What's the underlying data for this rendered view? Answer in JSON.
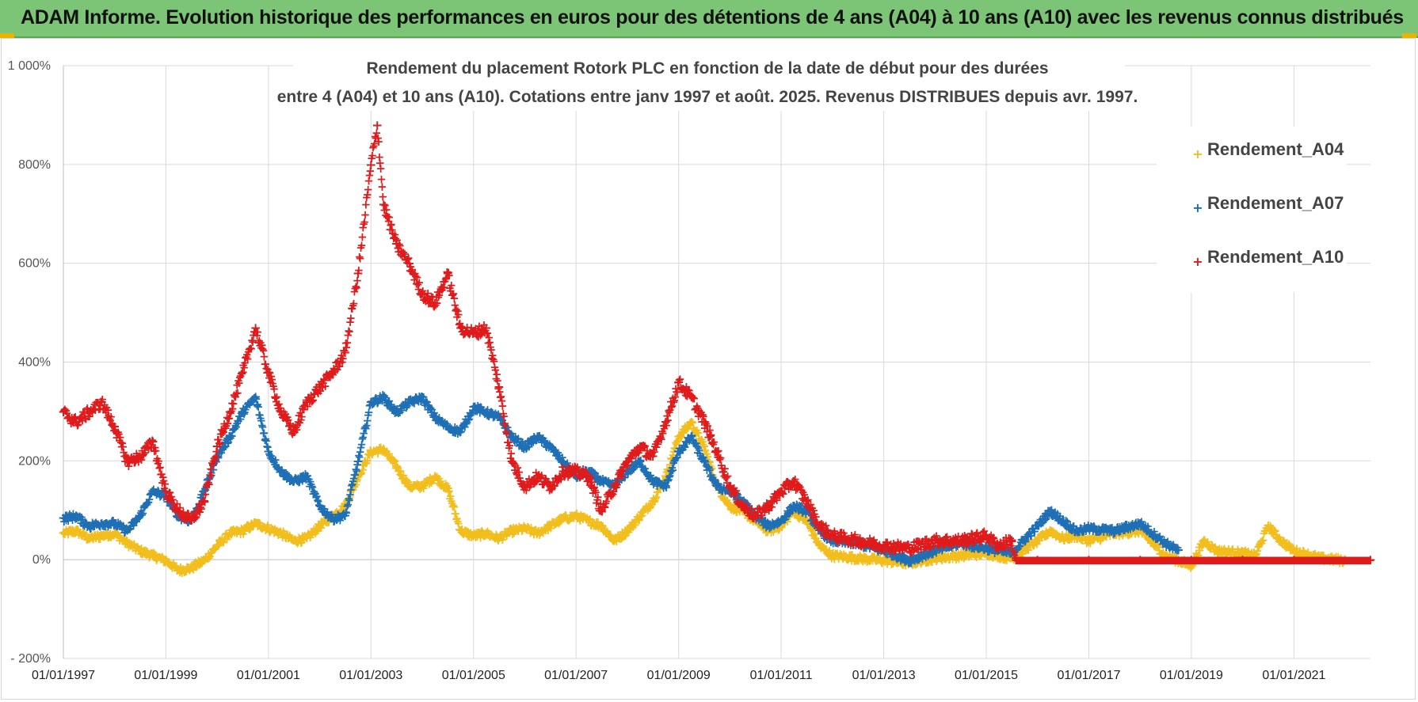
{
  "banner": {
    "title": "ADAM Informe. Evolution historique des performances en euros pour des détentions de 4 ans (A04) à 10 ans (A10) avec les revenus connus distribués"
  },
  "chart_data": {
    "type": "scatter",
    "title_line1": "Rendement du placement Rotork PLC en fonction de la date de début pour des durées",
    "title_line2": "entre 4 (A04) et 10 ans (A10).  Cotations entre janv 1997 et août. 2025. Revenus DISTRIBUES depuis avr. 1997.",
    "xlabel": "",
    "ylabel": "",
    "xlim": [
      "1997-01-01",
      "2022-06-30"
    ],
    "ylim": [
      -200,
      1000
    ],
    "y_ticks": [
      -200,
      0,
      200,
      400,
      600,
      800,
      1000
    ],
    "y_tick_labels": [
      "- 200%",
      "0%",
      "200%",
      "400%",
      "600%",
      "800%",
      "1 000%"
    ],
    "x_ticks": [
      "1997-01-01",
      "1999-01-01",
      "2001-01-01",
      "2003-01-01",
      "2005-01-01",
      "2007-01-01",
      "2009-01-01",
      "2011-01-01",
      "2013-01-01",
      "2015-01-01",
      "2017-01-01",
      "2019-01-01",
      "2021-01-01"
    ],
    "x_tick_labels": [
      "01/01/1997",
      "01/01/1999",
      "01/01/2001",
      "01/01/2003",
      "01/01/2005",
      "01/01/2007",
      "01/01/2009",
      "01/01/2011",
      "01/01/2013",
      "01/01/2015",
      "01/01/2017",
      "01/01/2019",
      "01/01/2021"
    ],
    "grid": true,
    "legend_position": "top-right",
    "series": [
      {
        "name": "Rendement_A04",
        "color": "#f2be1d",
        "points": [
          [
            "1997-01-01",
            55
          ],
          [
            "1997-04-01",
            60
          ],
          [
            "1997-07-01",
            45
          ],
          [
            "1997-10-01",
            50
          ],
          [
            "1998-01-01",
            55
          ],
          [
            "1998-04-01",
            35
          ],
          [
            "1998-07-01",
            20
          ],
          [
            "1998-10-01",
            10
          ],
          [
            "1999-01-01",
            0
          ],
          [
            "1999-04-01",
            -20
          ],
          [
            "1999-07-01",
            -15
          ],
          [
            "1999-10-01",
            0
          ],
          [
            "2000-01-01",
            30
          ],
          [
            "2000-04-01",
            55
          ],
          [
            "2000-07-01",
            60
          ],
          [
            "2000-10-01",
            75
          ],
          [
            "2001-01-01",
            65
          ],
          [
            "2001-04-01",
            55
          ],
          [
            "2001-07-01",
            40
          ],
          [
            "2001-10-01",
            45
          ],
          [
            "2002-01-01",
            70
          ],
          [
            "2002-04-01",
            90
          ],
          [
            "2002-07-01",
            110
          ],
          [
            "2002-10-01",
            170
          ],
          [
            "2003-01-01",
            220
          ],
          [
            "2003-04-01",
            225
          ],
          [
            "2003-07-01",
            190
          ],
          [
            "2003-10-01",
            150
          ],
          [
            "2004-01-01",
            150
          ],
          [
            "2004-04-01",
            170
          ],
          [
            "2004-07-01",
            145
          ],
          [
            "2004-10-01",
            60
          ],
          [
            "2005-01-01",
            50
          ],
          [
            "2005-04-01",
            55
          ],
          [
            "2005-07-01",
            45
          ],
          [
            "2005-10-01",
            60
          ],
          [
            "2006-01-01",
            65
          ],
          [
            "2006-04-01",
            55
          ],
          [
            "2006-07-01",
            70
          ],
          [
            "2006-10-01",
            85
          ],
          [
            "2007-01-01",
            90
          ],
          [
            "2007-04-01",
            80
          ],
          [
            "2007-07-01",
            70
          ],
          [
            "2007-10-01",
            40
          ],
          [
            "2008-01-01",
            60
          ],
          [
            "2008-04-01",
            90
          ],
          [
            "2008-07-01",
            120
          ],
          [
            "2008-10-01",
            170
          ],
          [
            "2009-01-01",
            250
          ],
          [
            "2009-04-01",
            280
          ],
          [
            "2009-07-01",
            230
          ],
          [
            "2009-10-01",
            150
          ],
          [
            "2010-01-01",
            110
          ],
          [
            "2010-04-01",
            100
          ],
          [
            "2010-07-01",
            80
          ],
          [
            "2010-10-01",
            60
          ],
          [
            "2011-01-01",
            70
          ],
          [
            "2011-04-01",
            100
          ],
          [
            "2011-07-01",
            80
          ],
          [
            "2011-10-01",
            30
          ],
          [
            "2012-01-01",
            10
          ],
          [
            "2012-07-01",
            5
          ],
          [
            "2013-01-01",
            0
          ],
          [
            "2013-07-01",
            -5
          ],
          [
            "2014-01-01",
            5
          ],
          [
            "2014-07-01",
            10
          ],
          [
            "2015-01-01",
            15
          ],
          [
            "2015-07-01",
            5
          ],
          [
            "2016-01-01",
            40
          ],
          [
            "2016-04-01",
            60
          ],
          [
            "2016-07-01",
            45
          ],
          [
            "2016-10-01",
            50
          ],
          [
            "2017-01-01",
            40
          ],
          [
            "2017-07-01",
            55
          ],
          [
            "2018-01-01",
            60
          ],
          [
            "2018-07-01",
            10
          ],
          [
            "2019-01-01",
            -10
          ],
          [
            "2019-04-01",
            40
          ],
          [
            "2019-07-01",
            20
          ],
          [
            "2020-01-01",
            15
          ],
          [
            "2020-04-01",
            10
          ],
          [
            "2020-07-01",
            70
          ],
          [
            "2020-10-01",
            40
          ],
          [
            "2021-01-01",
            20
          ],
          [
            "2021-07-01",
            5
          ],
          [
            "2022-01-01",
            0
          ],
          [
            "2022-06-30",
            0
          ]
        ]
      },
      {
        "name": "Rendement_A07",
        "color": "#1f6fb5",
        "points": [
          [
            "1997-01-01",
            85
          ],
          [
            "1997-04-01",
            90
          ],
          [
            "1997-07-01",
            70
          ],
          [
            "1997-10-01",
            75
          ],
          [
            "1998-01-01",
            75
          ],
          [
            "1998-04-01",
            60
          ],
          [
            "1998-07-01",
            90
          ],
          [
            "1998-10-01",
            140
          ],
          [
            "1999-01-01",
            130
          ],
          [
            "1999-04-01",
            90
          ],
          [
            "1999-07-01",
            80
          ],
          [
            "1999-10-01",
            140
          ],
          [
            "2000-01-01",
            210
          ],
          [
            "2000-04-01",
            250
          ],
          [
            "2000-07-01",
            300
          ],
          [
            "2000-10-01",
            330
          ],
          [
            "2001-01-01",
            220
          ],
          [
            "2001-04-01",
            180
          ],
          [
            "2001-07-01",
            160
          ],
          [
            "2001-10-01",
            170
          ],
          [
            "2002-01-01",
            110
          ],
          [
            "2002-04-01",
            85
          ],
          [
            "2002-07-01",
            90
          ],
          [
            "2002-10-01",
            200
          ],
          [
            "2003-01-01",
            320
          ],
          [
            "2003-04-01",
            330
          ],
          [
            "2003-07-01",
            300
          ],
          [
            "2003-10-01",
            320
          ],
          [
            "2004-01-01",
            330
          ],
          [
            "2004-04-01",
            290
          ],
          [
            "2004-07-01",
            270
          ],
          [
            "2004-10-01",
            260
          ],
          [
            "2005-01-01",
            310
          ],
          [
            "2005-04-01",
            300
          ],
          [
            "2005-07-01",
            290
          ],
          [
            "2005-10-01",
            250
          ],
          [
            "2006-01-01",
            230
          ],
          [
            "2006-04-01",
            250
          ],
          [
            "2006-07-01",
            230
          ],
          [
            "2006-10-01",
            200
          ],
          [
            "2007-01-01",
            170
          ],
          [
            "2007-04-01",
            180
          ],
          [
            "2007-07-01",
            160
          ],
          [
            "2007-10-01",
            150
          ],
          [
            "2008-01-01",
            180
          ],
          [
            "2008-04-01",
            200
          ],
          [
            "2008-07-01",
            160
          ],
          [
            "2008-10-01",
            150
          ],
          [
            "2009-01-01",
            220
          ],
          [
            "2009-04-01",
            250
          ],
          [
            "2009-07-01",
            200
          ],
          [
            "2009-10-01",
            150
          ],
          [
            "2010-01-01",
            140
          ],
          [
            "2010-04-01",
            120
          ],
          [
            "2010-07-01",
            90
          ],
          [
            "2010-10-01",
            70
          ],
          [
            "2011-01-01",
            80
          ],
          [
            "2011-04-01",
            110
          ],
          [
            "2011-07-01",
            100
          ],
          [
            "2011-10-01",
            60
          ],
          [
            "2012-01-01",
            40
          ],
          [
            "2012-07-01",
            35
          ],
          [
            "2013-01-01",
            20
          ],
          [
            "2013-07-01",
            0
          ],
          [
            "2014-01-01",
            20
          ],
          [
            "2014-07-01",
            35
          ],
          [
            "2015-01-01",
            25
          ],
          [
            "2015-07-01",
            15
          ],
          [
            "2016-01-01",
            70
          ],
          [
            "2016-04-01",
            100
          ],
          [
            "2016-07-01",
            80
          ],
          [
            "2016-10-01",
            60
          ],
          [
            "2017-01-01",
            65
          ],
          [
            "2017-07-01",
            60
          ],
          [
            "2018-01-01",
            75
          ],
          [
            "2018-07-01",
            35
          ],
          [
            "2018-10-01",
            20
          ]
        ]
      },
      {
        "name": "Rendement_A10",
        "color": "#e01b1b",
        "points": [
          [
            "1997-01-01",
            300
          ],
          [
            "1997-04-01",
            280
          ],
          [
            "1997-07-01",
            300
          ],
          [
            "1997-10-01",
            320
          ],
          [
            "1998-01-01",
            270
          ],
          [
            "1998-04-01",
            200
          ],
          [
            "1998-07-01",
            210
          ],
          [
            "1998-10-01",
            240
          ],
          [
            "1999-01-01",
            140
          ],
          [
            "1999-04-01",
            100
          ],
          [
            "1999-07-01",
            80
          ],
          [
            "1999-10-01",
            120
          ],
          [
            "2000-01-01",
            230
          ],
          [
            "2000-04-01",
            300
          ],
          [
            "2000-07-01",
            380
          ],
          [
            "2000-10-01",
            470
          ],
          [
            "2001-01-01",
            380
          ],
          [
            "2001-04-01",
            300
          ],
          [
            "2001-07-01",
            260
          ],
          [
            "2001-10-01",
            320
          ],
          [
            "2002-01-01",
            350
          ],
          [
            "2002-04-01",
            380
          ],
          [
            "2002-07-01",
            420
          ],
          [
            "2002-10-01",
            580
          ],
          [
            "2003-01-01",
            800
          ],
          [
            "2003-02-15",
            880
          ],
          [
            "2003-04-01",
            720
          ],
          [
            "2003-07-01",
            640
          ],
          [
            "2003-10-01",
            600
          ],
          [
            "2004-01-01",
            540
          ],
          [
            "2004-04-01",
            520
          ],
          [
            "2004-07-01",
            580
          ],
          [
            "2004-10-01",
            470
          ],
          [
            "2005-01-01",
            460
          ],
          [
            "2005-04-01",
            470
          ],
          [
            "2005-07-01",
            350
          ],
          [
            "2005-10-01",
            200
          ],
          [
            "2006-01-01",
            150
          ],
          [
            "2006-04-01",
            170
          ],
          [
            "2006-07-01",
            150
          ],
          [
            "2006-10-01",
            180
          ],
          [
            "2007-01-01",
            180
          ],
          [
            "2007-04-01",
            170
          ],
          [
            "2007-07-01",
            100
          ],
          [
            "2007-10-01",
            150
          ],
          [
            "2008-01-01",
            200
          ],
          [
            "2008-04-01",
            230
          ],
          [
            "2008-07-01",
            210
          ],
          [
            "2008-10-01",
            280
          ],
          [
            "2009-01-01",
            360
          ],
          [
            "2009-04-01",
            330
          ],
          [
            "2009-07-01",
            280
          ],
          [
            "2009-10-01",
            220
          ],
          [
            "2010-01-01",
            150
          ],
          [
            "2010-04-01",
            110
          ],
          [
            "2010-07-01",
            90
          ],
          [
            "2010-10-01",
            110
          ],
          [
            "2011-01-01",
            140
          ],
          [
            "2011-04-01",
            160
          ],
          [
            "2011-07-01",
            120
          ],
          [
            "2011-10-01",
            70
          ],
          [
            "2012-01-01",
            50
          ],
          [
            "2012-07-01",
            40
          ],
          [
            "2013-01-01",
            30
          ],
          [
            "2013-07-01",
            25
          ],
          [
            "2014-01-01",
            40
          ],
          [
            "2014-07-01",
            40
          ],
          [
            "2015-01-01",
            50
          ],
          [
            "2015-04-01",
            30
          ],
          [
            "2015-07-01",
            40
          ],
          [
            "2015-08-01",
            0
          ],
          [
            "2016-01-01",
            0
          ],
          [
            "2017-01-01",
            0
          ],
          [
            "2018-01-01",
            0
          ],
          [
            "2019-01-01",
            0
          ],
          [
            "2020-01-01",
            0
          ],
          [
            "2021-01-01",
            0
          ],
          [
            "2022-06-30",
            0
          ]
        ]
      }
    ]
  }
}
